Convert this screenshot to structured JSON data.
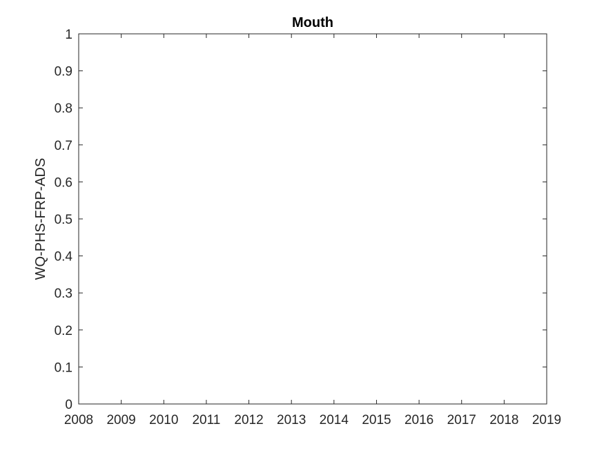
{
  "chart_data": {
    "type": "line",
    "title": "Mouth",
    "xlabel": "",
    "ylabel": "WQ-PHS-FRP-ADS",
    "xlim": [
      2008,
      2019
    ],
    "ylim": [
      0,
      1
    ],
    "xticks": [
      "2008",
      "2009",
      "2010",
      "2011",
      "2012",
      "2013",
      "2014",
      "2015",
      "2016",
      "2017",
      "2018",
      "2019"
    ],
    "yticks": [
      "0",
      "0.1",
      "0.2",
      "0.3",
      "0.4",
      "0.5",
      "0.6",
      "0.7",
      "0.8",
      "0.9",
      "1"
    ],
    "series": [],
    "grid": false,
    "box": true
  }
}
